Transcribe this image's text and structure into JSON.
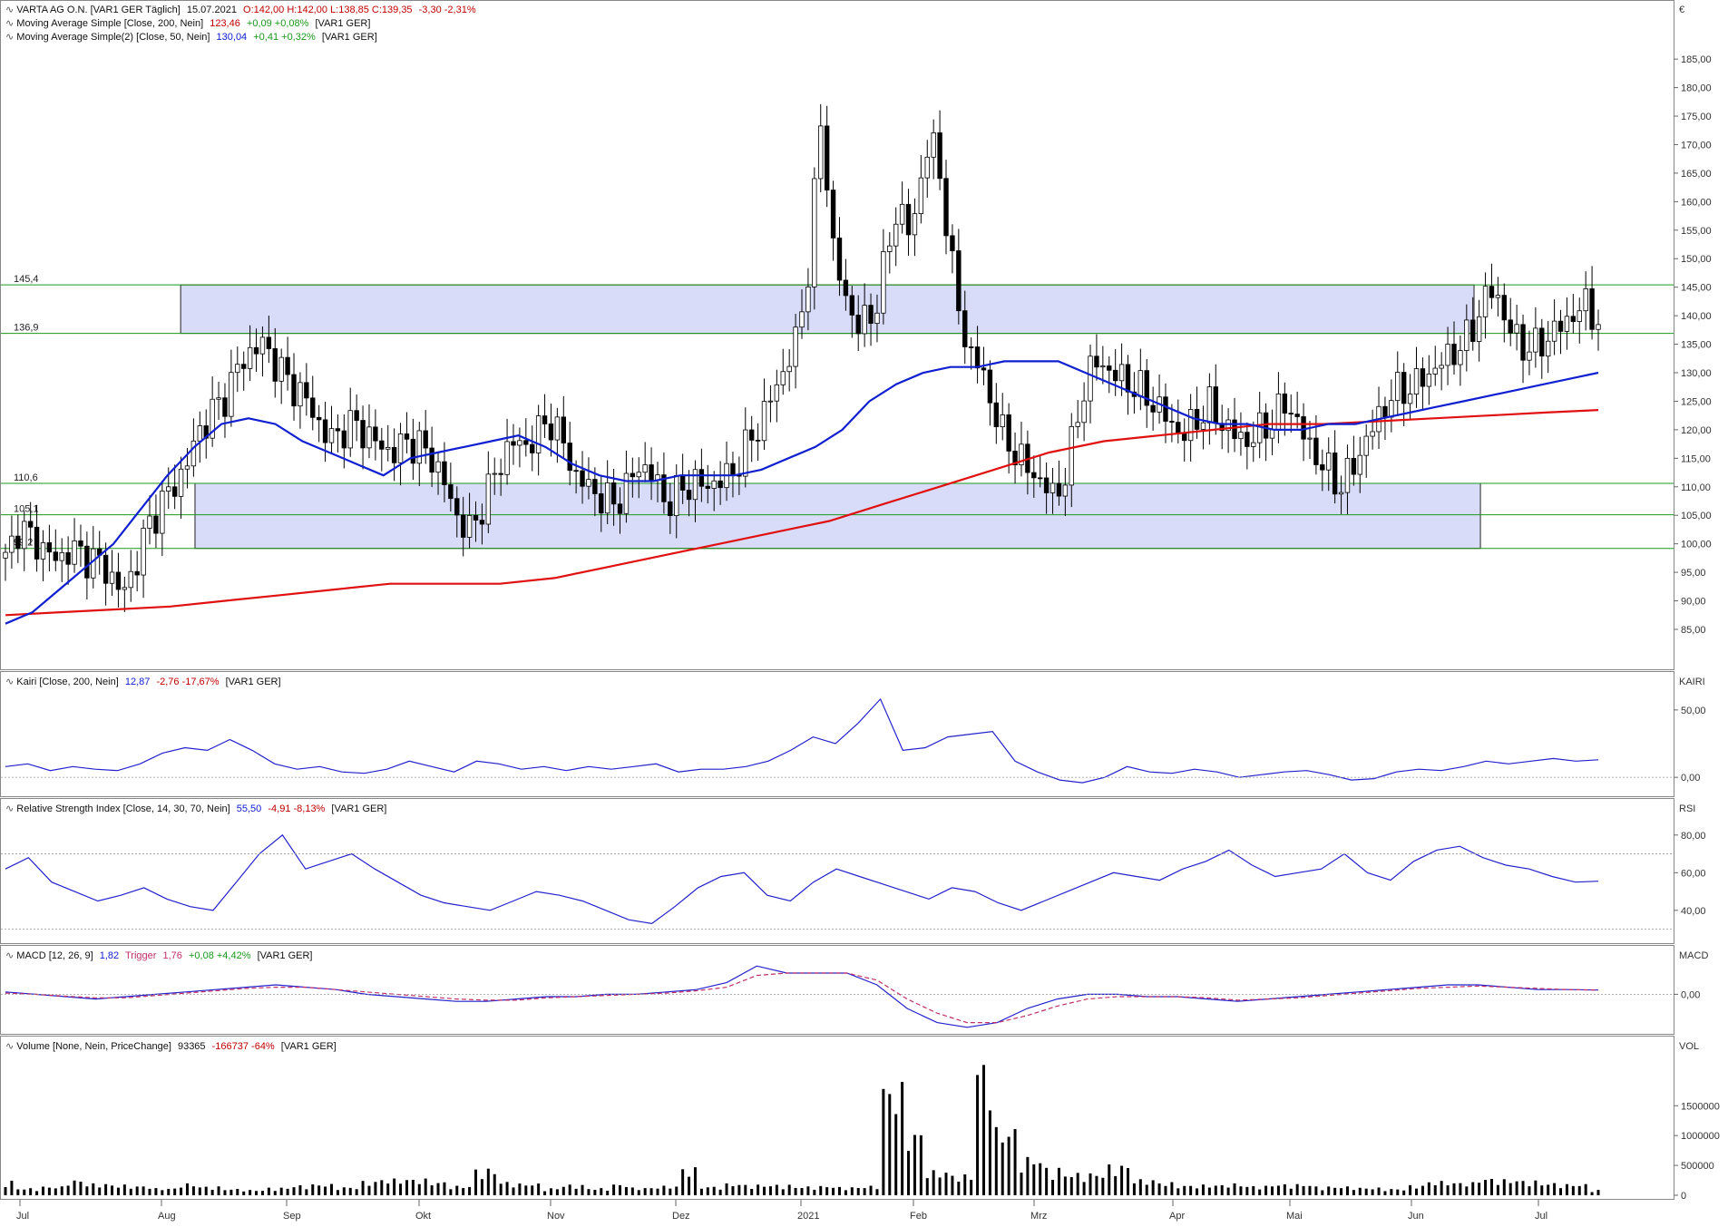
{
  "header": {
    "title": "VARTA AG O.N. [VAR1 GER Täglich]",
    "date": "15.07.2021",
    "ohlc": "O:142,00 H:142,00 L:138,85 C:139,35",
    "change": "-3,30 -2,31%",
    "sma200_label": "Moving Average Simple [Close, 200, Nein]",
    "sma200_value": "123,46",
    "sma200_change": "+0,09 +0,08%",
    "sma200_suffix": "[VAR1 GER]",
    "sma50_label": "Moving Average Simple(2) [Close, 50, Nein]",
    "sma50_value": "130,04",
    "sma50_change": "+0,41 +0,32%",
    "sma50_suffix": "[VAR1 GER]"
  },
  "price_axis": {
    "unit": "€",
    "ticks": [
      "85,00",
      "90,00",
      "95,00",
      "100,00",
      "105,00",
      "110,00",
      "115,00",
      "120,00",
      "125,00",
      "130,00",
      "135,00",
      "140,00",
      "145,00",
      "150,00",
      "155,00",
      "160,00",
      "165,00",
      "170,00",
      "175,00",
      "180,00",
      "185,00"
    ]
  },
  "levels": [
    {
      "label": "145,4",
      "value": 145.4
    },
    {
      "label": "136,9",
      "value": 136.9
    },
    {
      "label": "110,6",
      "value": 110.6
    },
    {
      "label": "105,1",
      "value": 105.1
    },
    {
      "label": "99,2",
      "value": 99.2
    }
  ],
  "panels": {
    "kairi": {
      "label": "Kairi [Close, 200, Nein]",
      "value": "12,87",
      "change": "-2,76 -17,67%",
      "suffix": "[VAR1 GER]",
      "axis_title": "KAIRI",
      "ticks": [
        "0,00",
        "50,00"
      ]
    },
    "rsi": {
      "label": "Relative Strength Index [Close, 14, 30, 70, Nein]",
      "value": "55,50",
      "change": "-4,91 -8,13%",
      "suffix": "[VAR1 GER]",
      "axis_title": "RSI",
      "ticks": [
        "40,00",
        "60,00",
        "80,00"
      ]
    },
    "macd": {
      "label": "MACD [12, 26, 9]",
      "value": "1,82",
      "trigger_label": "Trigger",
      "trigger_value": "1,76",
      "change": "+0,08 +4,42%",
      "suffix": "[VAR1 GER]",
      "axis_title": "MACD",
      "ticks": [
        "0,00"
      ]
    },
    "volume": {
      "label": "Volume [None, Nein, PriceChange]",
      "value": "93365",
      "change": "-166737 -64%",
      "suffix": "[VAR1 GER]",
      "axis_title": "VOL",
      "ticks": [
        "0",
        "500000",
        "1000000",
        "1500000"
      ]
    }
  },
  "x_axis": {
    "months": [
      "Jul",
      "Aug",
      "Sep",
      "Okt",
      "Nov",
      "Dez",
      "2021",
      "Feb",
      "Mrz",
      "Apr",
      "Mai",
      "Jun",
      "Jul"
    ]
  },
  "colors": {
    "sma200": "#e01010",
    "sma50": "#1020d0",
    "indicator": "#2222cc",
    "signal": "#c0306a",
    "zone": "#d8dcf8",
    "level": "#1a9a1a",
    "up": "#ffffff",
    "down": "#000000"
  },
  "chart_data": {
    "type": "candlestick",
    "title": "VARTA AG O.N. [VAR1 GER Täglich]",
    "zones": [
      {
        "from_month": "Aug",
        "to_month": "Jun",
        "low": 136.9,
        "high": 145.4
      },
      {
        "from_month": "Aug",
        "to_month": "Jun",
        "low": 99.2,
        "high": 110.6
      }
    ],
    "months": [
      "Jul",
      "Aug",
      "Sep",
      "Okt",
      "Nov",
      "Dez",
      "2021",
      "Feb",
      "Mrz",
      "Apr",
      "Mai",
      "Jun",
      "Jul"
    ],
    "close_path": [
      97,
      103,
      101,
      99,
      97,
      99,
      98,
      97,
      95,
      91,
      96,
      103,
      107,
      110,
      114,
      120,
      123,
      126,
      131,
      134,
      135,
      131,
      128,
      126,
      122,
      118,
      120,
      121,
      119,
      117,
      116,
      118,
      117,
      115,
      110,
      104,
      102,
      108,
      113,
      118,
      117,
      119,
      122,
      118,
      112,
      110,
      108,
      107,
      110,
      114,
      112,
      107,
      109,
      111,
      110,
      111,
      112,
      116,
      120,
      125,
      130,
      135,
      148,
      175,
      150,
      142,
      138,
      140,
      150,
      160,
      153,
      170,
      168,
      150,
      136,
      132,
      126,
      119,
      116,
      113,
      111,
      108,
      113,
      125,
      132,
      131,
      129,
      128,
      126,
      124,
      121,
      119,
      122,
      124,
      121,
      119,
      118,
      120,
      122,
      125,
      120,
      116,
      113,
      110,
      113,
      118,
      122,
      126,
      127,
      128,
      130,
      132,
      134,
      136,
      142,
      145,
      138,
      135,
      134,
      136,
      138,
      140,
      142,
      139
    ],
    "sma50_path": [
      86,
      88,
      92,
      96,
      100,
      106,
      112,
      117,
      121,
      122,
      121,
      118,
      116,
      114,
      112,
      115,
      116,
      117,
      118,
      119,
      117,
      114,
      112,
      111,
      111,
      112,
      112,
      112,
      113,
      115,
      117,
      120,
      125,
      128,
      130,
      131,
      131,
      132,
      132,
      132,
      130,
      128,
      126,
      124,
      122,
      121,
      121,
      120,
      120,
      121,
      121,
      122,
      123,
      124,
      125,
      126,
      127,
      128,
      129,
      130
    ],
    "sma200_path": [
      87.5,
      88,
      88.5,
      89,
      90,
      91,
      92,
      93,
      93,
      93,
      94,
      96,
      98,
      100,
      102,
      104,
      107,
      110,
      113,
      116,
      118,
      119,
      120,
      121,
      121,
      121.5,
      122,
      122.5,
      123,
      123.46
    ],
    "kairi_path": [
      8,
      10,
      5,
      8,
      6,
      5,
      10,
      18,
      22,
      20,
      28,
      20,
      10,
      6,
      8,
      4,
      3,
      6,
      12,
      8,
      4,
      12,
      10,
      6,
      8,
      5,
      8,
      6,
      8,
      10,
      4,
      6,
      6,
      8,
      12,
      20,
      30,
      25,
      40,
      58,
      20,
      22,
      30,
      32,
      34,
      12,
      4,
      -2,
      -4,
      0,
      8,
      4,
      3,
      6,
      4,
      0,
      2,
      4,
      5,
      2,
      -2,
      -1,
      4,
      6,
      5,
      8,
      12,
      10,
      12,
      14,
      12,
      13
    ],
    "rsi_path": [
      62,
      68,
      55,
      50,
      45,
      48,
      52,
      46,
      42,
      40,
      55,
      70,
      80,
      62,
      66,
      70,
      62,
      55,
      48,
      44,
      42,
      40,
      45,
      50,
      48,
      45,
      40,
      35,
      33,
      42,
      52,
      58,
      60,
      48,
      45,
      55,
      62,
      58,
      54,
      50,
      46,
      52,
      50,
      44,
      40,
      45,
      50,
      55,
      60,
      58,
      56,
      62,
      66,
      72,
      64,
      58,
      60,
      62,
      70,
      60,
      56,
      66,
      72,
      74,
      68,
      64,
      62,
      58,
      55,
      55.5
    ],
    "macd_path": [
      1,
      0,
      -1,
      -2,
      -1,
      0,
      1,
      2,
      3,
      4,
      3,
      2,
      0,
      -1,
      -2,
      -3,
      -3,
      -2,
      -1,
      -1,
      0,
      0,
      1,
      2,
      5,
      12,
      9,
      9,
      9,
      4,
      -6,
      -12,
      -14,
      -12,
      -6,
      -2,
      0,
      0,
      -1,
      -1,
      -2,
      -3,
      -2,
      -1,
      0,
      1,
      2,
      3,
      4,
      4,
      3,
      2,
      2,
      1.82
    ],
    "signal_path": [
      0.5,
      0,
      -0.8,
      -1.5,
      -1.5,
      -0.5,
      0.5,
      1.5,
      2.5,
      3,
      3,
      2,
      1,
      0,
      -1,
      -2,
      -2.5,
      -2.5,
      -1.5,
      -1,
      -0.5,
      0,
      0.5,
      1.5,
      3,
      8,
      9,
      9,
      9,
      6,
      -2,
      -8,
      -12,
      -12,
      -9,
      -5,
      -2,
      -1,
      -1,
      -1,
      -1.5,
      -2.5,
      -2,
      -1.5,
      -0.5,
      0.5,
      1.5,
      2.5,
      3,
      3.5,
      3,
      2.5,
      2,
      1.76
    ],
    "volume_path": [
      250,
      120,
      150,
      260,
      200,
      180,
      160,
      120,
      200,
      150,
      110,
      90,
      130,
      170,
      190,
      140,
      240,
      280,
      280,
      230,
      160,
      450,
      230,
      200,
      120,
      180,
      120,
      190,
      130,
      160,
      470,
      150,
      200,
      180,
      180,
      150,
      160,
      140,
      160,
      1900,
      1100,
      420,
      350,
      2300,
      1150,
      650,
      470,
      380,
      380,
      520,
      270,
      220,
      170,
      180,
      200,
      160,
      190,
      190,
      150,
      150,
      130,
      110,
      170,
      240,
      220,
      290,
      270,
      250,
      210,
      190,
      93
    ]
  }
}
